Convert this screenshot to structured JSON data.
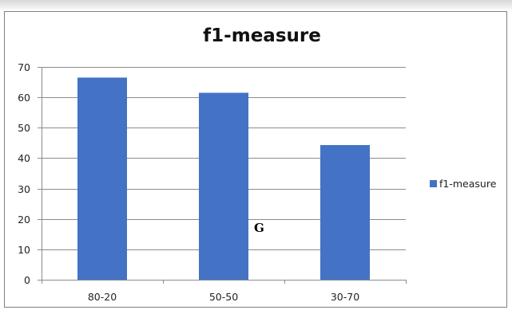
{
  "chart_data": {
    "type": "bar",
    "title": "f1-measure",
    "categories": [
      "80-20",
      "50-50",
      "30-70"
    ],
    "series": [
      {
        "name": "f1-measure",
        "values": [
          66.5,
          61.5,
          44.3
        ]
      }
    ],
    "ylim": [
      0,
      70
    ],
    "yticks": [
      0,
      10,
      20,
      30,
      40,
      50,
      60,
      70
    ],
    "grid": true,
    "legend": "right",
    "bar_color": "#4472c4",
    "grid_color": "#8c8c8c"
  },
  "annotation": "G"
}
